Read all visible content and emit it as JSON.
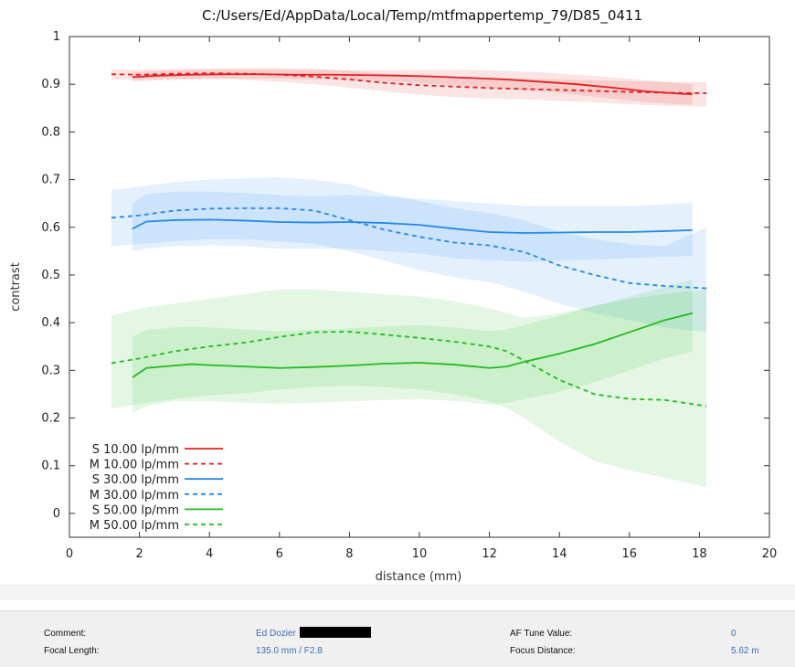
{
  "chart_data": {
    "type": "line",
    "title": "C:/Users/Ed/AppData/Local/Temp/mtfmappertemp_79/D85_0411",
    "xlabel": "distance (mm)",
    "ylabel": "contrast",
    "xlim": [
      0,
      20
    ],
    "ylim": [
      -0.05,
      1
    ],
    "x_ticks": [
      "0",
      "2",
      "4",
      "6",
      "8",
      "10",
      "12",
      "14",
      "16",
      "18",
      "20"
    ],
    "y_ticks": [
      "0",
      "0.1",
      "0.2",
      "0.3",
      "0.4",
      "0.5",
      "0.6",
      "0.7",
      "0.8",
      "0.9",
      "1"
    ],
    "grid": false,
    "legend_position": "bottom-left",
    "series": [
      {
        "name": "S 10.00 lp/mm",
        "color": "#e02020",
        "dash": "solid",
        "x": [
          1.8,
          2.5,
          3.5,
          4.5,
          5.5,
          6.5,
          7.5,
          8.5,
          9.5,
          10.5,
          11.5,
          12.5,
          13.5,
          14.5,
          15.5,
          16.5,
          17.5,
          17.8
        ],
        "y": [
          0.915,
          0.918,
          0.92,
          0.921,
          0.921,
          0.92,
          0.92,
          0.919,
          0.918,
          0.916,
          0.913,
          0.91,
          0.905,
          0.9,
          0.893,
          0.885,
          0.88,
          0.879
        ],
        "band_lower": [
          0.905,
          0.908,
          0.91,
          0.912,
          0.912,
          0.911,
          0.91,
          0.908,
          0.905,
          0.9,
          0.895,
          0.89,
          0.885,
          0.878,
          0.87,
          0.862,
          0.858,
          0.857
        ],
        "band_upper": [
          0.925,
          0.928,
          0.93,
          0.931,
          0.931,
          0.93,
          0.93,
          0.929,
          0.93,
          0.93,
          0.93,
          0.928,
          0.925,
          0.92,
          0.915,
          0.908,
          0.902,
          0.9
        ]
      },
      {
        "name": "M 10.00 lp/mm",
        "color": "#e02020",
        "dash": "dashed",
        "x": [
          1.2,
          2,
          3,
          4,
          5,
          6,
          7,
          8,
          9,
          10,
          11,
          12,
          13,
          14,
          15,
          16,
          17,
          18.2
        ],
        "y": [
          0.921,
          0.92,
          0.922,
          0.923,
          0.922,
          0.92,
          0.916,
          0.91,
          0.903,
          0.898,
          0.895,
          0.892,
          0.89,
          0.888,
          0.886,
          0.884,
          0.882,
          0.881
        ],
        "band_lower": [
          0.91,
          0.91,
          0.912,
          0.912,
          0.91,
          0.905,
          0.9,
          0.893,
          0.885,
          0.878,
          0.873,
          0.87,
          0.868,
          0.865,
          0.862,
          0.858,
          0.855,
          0.853
        ],
        "band_upper": [
          0.932,
          0.93,
          0.932,
          0.933,
          0.934,
          0.934,
          0.932,
          0.928,
          0.922,
          0.918,
          0.915,
          0.913,
          0.912,
          0.91,
          0.908,
          0.906,
          0.905,
          0.904
        ]
      },
      {
        "name": "S 30.00 lp/mm",
        "color": "#2288ee",
        "dash": "solid",
        "x": [
          1.8,
          2.2,
          3,
          4,
          5,
          6,
          7,
          8,
          9,
          10,
          11,
          12,
          13,
          14,
          15,
          16,
          17,
          17.8
        ],
        "y": [
          0.597,
          0.612,
          0.615,
          0.616,
          0.614,
          0.611,
          0.61,
          0.611,
          0.609,
          0.605,
          0.597,
          0.59,
          0.588,
          0.589,
          0.59,
          0.59,
          0.592,
          0.594
        ],
        "band_lower": [
          0.55,
          0.555,
          0.56,
          0.562,
          0.56,
          0.555,
          0.555,
          0.555,
          0.55,
          0.545,
          0.535,
          0.53,
          0.528,
          0.53,
          0.532,
          0.535,
          0.538,
          0.54
        ],
        "band_upper": [
          0.65,
          0.67,
          0.675,
          0.675,
          0.672,
          0.668,
          0.665,
          0.668,
          0.665,
          0.66,
          0.655,
          0.65,
          0.645,
          0.645,
          0.645,
          0.645,
          0.648,
          0.652
        ]
      },
      {
        "name": "M 30.00 lp/mm",
        "color": "#2288ee",
        "dash": "dashed",
        "x": [
          1.2,
          2,
          3,
          4,
          5,
          6,
          7,
          8,
          9,
          10,
          11,
          12,
          13,
          14,
          15,
          16,
          17,
          18.2
        ],
        "y": [
          0.62,
          0.625,
          0.635,
          0.639,
          0.64,
          0.64,
          0.635,
          0.615,
          0.595,
          0.58,
          0.568,
          0.562,
          0.548,
          0.52,
          0.5,
          0.483,
          0.477,
          0.472
        ],
        "band_lower": [
          0.56,
          0.565,
          0.57,
          0.575,
          0.575,
          0.57,
          0.565,
          0.55,
          0.53,
          0.51,
          0.495,
          0.485,
          0.465,
          0.44,
          0.42,
          0.405,
          0.39,
          0.38
        ],
        "band_upper": [
          0.678,
          0.685,
          0.695,
          0.7,
          0.703,
          0.705,
          0.7,
          0.69,
          0.67,
          0.655,
          0.64,
          0.63,
          0.615,
          0.59,
          0.575,
          0.565,
          0.56,
          0.6
        ]
      },
      {
        "name": "S 50.00 lp/mm",
        "color": "#22bb22",
        "dash": "solid",
        "x": [
          1.8,
          2.2,
          3,
          3.5,
          4,
          5,
          6,
          7,
          8,
          9,
          10,
          11,
          12,
          12.5,
          13,
          14,
          15,
          16,
          17,
          17.8
        ],
        "y": [
          0.285,
          0.305,
          0.31,
          0.313,
          0.311,
          0.308,
          0.305,
          0.307,
          0.31,
          0.314,
          0.316,
          0.312,
          0.305,
          0.308,
          0.318,
          0.335,
          0.355,
          0.38,
          0.405,
          0.42
        ],
        "band_lower": [
          0.21,
          0.225,
          0.235,
          0.235,
          0.235,
          0.232,
          0.23,
          0.232,
          0.235,
          0.238,
          0.24,
          0.236,
          0.228,
          0.232,
          0.24,
          0.255,
          0.275,
          0.3,
          0.325,
          0.34
        ],
        "band_upper": [
          0.37,
          0.385,
          0.39,
          0.392,
          0.39,
          0.386,
          0.382,
          0.385,
          0.388,
          0.392,
          0.395,
          0.39,
          0.382,
          0.386,
          0.395,
          0.415,
          0.435,
          0.455,
          0.475,
          0.49
        ]
      },
      {
        "name": "M 50.00 lp/mm",
        "color": "#22bb22",
        "dash": "dashed",
        "x": [
          1.2,
          2,
          3,
          4,
          5,
          6,
          7,
          8,
          9,
          10,
          11,
          12,
          12.5,
          13,
          14,
          15,
          16,
          17,
          18.2
        ],
        "y": [
          0.315,
          0.325,
          0.34,
          0.35,
          0.358,
          0.37,
          0.38,
          0.381,
          0.375,
          0.368,
          0.36,
          0.35,
          0.34,
          0.32,
          0.28,
          0.25,
          0.24,
          0.238,
          0.225
        ],
        "band_lower": [
          0.22,
          0.23,
          0.24,
          0.248,
          0.252,
          0.26,
          0.265,
          0.268,
          0.265,
          0.26,
          0.25,
          0.235,
          0.22,
          0.2,
          0.15,
          0.11,
          0.09,
          0.075,
          0.055
        ],
        "band_upper": [
          0.415,
          0.43,
          0.44,
          0.45,
          0.46,
          0.47,
          0.47,
          0.465,
          0.46,
          0.455,
          0.445,
          0.43,
          0.42,
          0.41,
          0.42,
          0.435,
          0.45,
          0.46,
          0.47
        ]
      }
    ]
  },
  "footer": {
    "comment_label": "Comment:",
    "comment_value": "Ed Dozier",
    "focal_label": "Focal Length:",
    "focal_value": "135.0 mm / F2.8",
    "af_label": "AF Tune Value:",
    "af_value": "0",
    "focus_label": "Focus Distance:",
    "focus_value": "5.62 m"
  }
}
